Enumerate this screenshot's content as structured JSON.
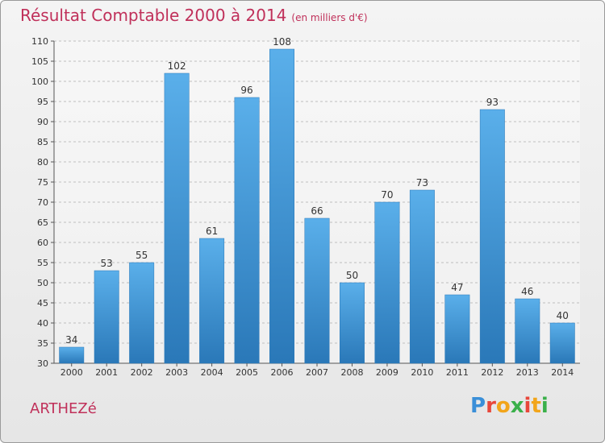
{
  "header": {
    "title": "Résultat Comptable 2000 à 2014",
    "subtitle": "(en milliers d'€)"
  },
  "footer": {
    "commune": "ARTHEZé",
    "logo_letters": [
      "P",
      "r",
      "o",
      "x",
      "i",
      "t",
      "i"
    ]
  },
  "colors": {
    "title": "#c0305a",
    "bar_top": "#5aafea",
    "bar_bottom": "#2a78b8",
    "logo": [
      "#3a8fd8",
      "#e8473b",
      "#f2a51a",
      "#3ab04a",
      "#e8473b",
      "#f2a51a",
      "#3ab04a"
    ]
  },
  "chart_data": {
    "type": "bar",
    "title": "Résultat Comptable 2000 à 2014",
    "xlabel": "",
    "ylabel": "",
    "ylim": [
      30,
      110
    ],
    "yticks": [
      30,
      35,
      40,
      45,
      50,
      55,
      60,
      65,
      70,
      75,
      80,
      85,
      90,
      95,
      100,
      105,
      110
    ],
    "grid": true,
    "categories": [
      "2000",
      "2001",
      "2002",
      "2003",
      "2004",
      "2005",
      "2006",
      "2007",
      "2008",
      "2009",
      "2010",
      "2011",
      "2012",
      "2013",
      "2014"
    ],
    "values": [
      34,
      53,
      55,
      102,
      61,
      96,
      108,
      66,
      50,
      70,
      73,
      47,
      93,
      46,
      40
    ]
  }
}
